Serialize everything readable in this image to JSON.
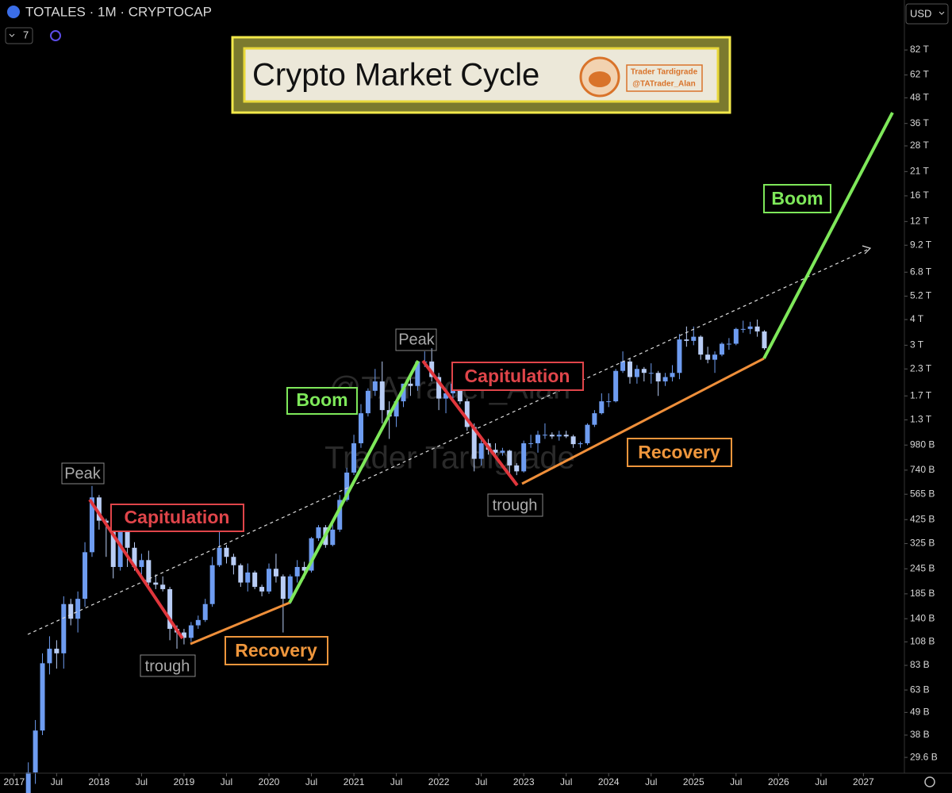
{
  "chart_data": {
    "type": "candlestick",
    "title": "TOTALES · 1M · CRYPTOCAP",
    "indicator": "7",
    "currency": "USD",
    "log_scale": true,
    "up_color": "#6e9cf0",
    "down_color": "#b9cdf5",
    "xlim": [
      "2016-11",
      "2027-06"
    ],
    "ylim": [
      24.8,
      143600
    ],
    "xticks": [
      {
        "value": "2017-01",
        "label": "2017"
      },
      {
        "value": "2017-07",
        "label": "Jul"
      },
      {
        "value": "2018-01",
        "label": "2018"
      },
      {
        "value": "2018-07",
        "label": "Jul"
      },
      {
        "value": "2019-01",
        "label": "2019"
      },
      {
        "value": "2019-07",
        "label": "Jul"
      },
      {
        "value": "2020-01",
        "label": "2020"
      },
      {
        "value": "2020-07",
        "label": "Jul"
      },
      {
        "value": "2021-01",
        "label": "2021"
      },
      {
        "value": "2021-07",
        "label": "Jul"
      },
      {
        "value": "2022-01",
        "label": "2022"
      },
      {
        "value": "2022-07",
        "label": "Jul"
      },
      {
        "value": "2023-01",
        "label": "2023"
      },
      {
        "value": "2023-07",
        "label": "Jul"
      },
      {
        "value": "2024-01",
        "label": "2024"
      },
      {
        "value": "2024-07",
        "label": "Jul"
      },
      {
        "value": "2025-01",
        "label": "2025"
      },
      {
        "value": "2025-07",
        "label": "Jul"
      },
      {
        "value": "2026-01",
        "label": "2026"
      },
      {
        "value": "2026-07",
        "label": "Jul"
      },
      {
        "value": "2027-01",
        "label": "2027"
      }
    ],
    "yticks": [
      {
        "value": 82000,
        "label": "82 T"
      },
      {
        "value": 62000,
        "label": "62 T"
      },
      {
        "value": 48000,
        "label": "48 T"
      },
      {
        "value": 36000,
        "label": "36 T"
      },
      {
        "value": 28000,
        "label": "28 T"
      },
      {
        "value": 21000,
        "label": "21 T"
      },
      {
        "value": 16000,
        "label": "16 T"
      },
      {
        "value": 12000,
        "label": "12 T"
      },
      {
        "value": 9200,
        "label": "9.2 T"
      },
      {
        "value": 6800,
        "label": "6.8 T"
      },
      {
        "value": 5200,
        "label": "5.2 T"
      },
      {
        "value": 4000,
        "label": "4 T"
      },
      {
        "value": 3000,
        "label": "3 T"
      },
      {
        "value": 2300,
        "label": "2.3 T"
      },
      {
        "value": 1700,
        "label": "1.7 T"
      },
      {
        "value": 1300,
        "label": "1.3 T"
      },
      {
        "value": 980,
        "label": "980 B"
      },
      {
        "value": 740,
        "label": "740 B"
      },
      {
        "value": 565,
        "label": "565 B"
      },
      {
        "value": 425,
        "label": "425 B"
      },
      {
        "value": 325,
        "label": "325 B"
      },
      {
        "value": 245,
        "label": "245 B"
      },
      {
        "value": 185,
        "label": "185 B"
      },
      {
        "value": 140,
        "label": "140 B"
      },
      {
        "value": 108,
        "label": "108 B"
      },
      {
        "value": 83,
        "label": "83 B"
      },
      {
        "value": 63,
        "label": "63 B"
      },
      {
        "value": 49,
        "label": "49 B"
      },
      {
        "value": 38,
        "label": "38 B"
      },
      {
        "value": 29.6,
        "label": "29.6 B"
      }
    ],
    "x": [
      "2017-03",
      "2017-04",
      "2017-05",
      "2017-06",
      "2017-07",
      "2017-08",
      "2017-09",
      "2017-10",
      "2017-11",
      "2017-12",
      "2018-01",
      "2018-02",
      "2018-03",
      "2018-04",
      "2018-05",
      "2018-06",
      "2018-07",
      "2018-08",
      "2018-09",
      "2018-10",
      "2018-11",
      "2018-12",
      "2019-01",
      "2019-02",
      "2019-03",
      "2019-04",
      "2019-05",
      "2019-06",
      "2019-07",
      "2019-08",
      "2019-09",
      "2019-10",
      "2019-11",
      "2019-12",
      "2020-01",
      "2020-02",
      "2020-03",
      "2020-04",
      "2020-05",
      "2020-06",
      "2020-07",
      "2020-08",
      "2020-09",
      "2020-10",
      "2020-11",
      "2020-12",
      "2021-01",
      "2021-02",
      "2021-03",
      "2021-04",
      "2021-05",
      "2021-06",
      "2021-07",
      "2021-08",
      "2021-09",
      "2021-10",
      "2021-11",
      "2021-12",
      "2022-01",
      "2022-02",
      "2022-03",
      "2022-04",
      "2022-05",
      "2022-06",
      "2022-07",
      "2022-08",
      "2022-09",
      "2022-10",
      "2022-11",
      "2022-12",
      "2023-01",
      "2023-02",
      "2023-03",
      "2023-04",
      "2023-05",
      "2023-06",
      "2023-07",
      "2023-08",
      "2023-09",
      "2023-10",
      "2023-11",
      "2023-12",
      "2024-01",
      "2024-02",
      "2024-03",
      "2024-04",
      "2024-05",
      "2024-06",
      "2024-07",
      "2024-08",
      "2024-09",
      "2024-10",
      "2024-11",
      "2024-12",
      "2025-01",
      "2025-02",
      "2025-03",
      "2025-04",
      "2025-05",
      "2025-06",
      "2025-07",
      "2025-08",
      "2025-09",
      "2025-10",
      "2025-11"
    ],
    "open": [
      18,
      25,
      40,
      85,
      100,
      95,
      165,
      140,
      175,
      295,
      545,
      420,
      410,
      250,
      390,
      310,
      250,
      270,
      210,
      205,
      195,
      125,
      120,
      113,
      130,
      138,
      165,
      255,
      310,
      280,
      255,
      210,
      235,
      200,
      190,
      245,
      225,
      175,
      225,
      250,
      240,
      345,
      390,
      320,
      380,
      530,
      720,
      1000,
      1400,
      1800,
      2000,
      1450,
      1350,
      1600,
      1950,
      1900,
      2500,
      2500,
      2100,
      1650,
      1750,
      1950,
      1600,
      1200,
      840,
      1000,
      930,
      900,
      920,
      780,
      730,
      1000,
      1000,
      1100,
      1100,
      1080,
      1100,
      1080,
      990,
      1000,
      1230,
      1400,
      1600,
      1600,
      2250,
      2500,
      2100,
      2300,
      2200,
      2200,
      2000,
      2100,
      2200,
      3200,
      3150,
      3300,
      2700,
      2550,
      2700,
      3050,
      3050,
      3600,
      3600,
      3700,
      3500
    ],
    "high": [
      28,
      45,
      95,
      115,
      110,
      180,
      175,
      190,
      330,
      620,
      560,
      430,
      450,
      420,
      420,
      330,
      290,
      300,
      230,
      225,
      200,
      130,
      125,
      135,
      145,
      175,
      280,
      370,
      320,
      290,
      260,
      260,
      240,
      205,
      260,
      290,
      230,
      230,
      270,
      265,
      350,
      400,
      400,
      410,
      560,
      760,
      1100,
      1550,
      1850,
      2300,
      2500,
      1600,
      1500,
      1700,
      2150,
      2100,
      2800,
      2900,
      2200,
      1850,
      2050,
      2000,
      1650,
      1250,
      1050,
      1050,
      1000,
      950,
      930,
      800,
      1030,
      1100,
      1150,
      1250,
      1130,
      1150,
      1150,
      1100,
      1020,
      1250,
      1450,
      1750,
      1750,
      2300,
      2800,
      2600,
      2400,
      2350,
      2450,
      2250,
      2200,
      2400,
      3400,
      3700,
      3700,
      3350,
      2950,
      2800,
      3100,
      3250,
      3650,
      3950,
      3900,
      4000,
      3550
    ],
    "low": [
      17,
      22,
      38,
      75,
      80,
      80,
      130,
      120,
      160,
      280,
      380,
      280,
      220,
      240,
      250,
      240,
      230,
      200,
      195,
      190,
      110,
      100,
      105,
      108,
      125,
      135,
      160,
      250,
      260,
      230,
      200,
      190,
      195,
      180,
      185,
      210,
      120,
      165,
      210,
      220,
      235,
      335,
      310,
      315,
      370,
      520,
      700,
      950,
      1350,
      1700,
      1250,
      1050,
      1200,
      1500,
      1700,
      1800,
      2350,
      2000,
      1450,
      1400,
      1650,
      1550,
      1150,
      730,
      780,
      880,
      860,
      870,
      690,
      700,
      720,
      950,
      900,
      1050,
      1050,
      1030,
      1060,
      950,
      950,
      980,
      1200,
      1380,
      1500,
      1580,
      2200,
      1950,
      1950,
      2000,
      1950,
      1700,
      1900,
      2000,
      2050,
      2950,
      3000,
      2550,
      2450,
      2200,
      2650,
      2850,
      3000,
      3450,
      3400,
      3300,
      2850
    ],
    "close": [
      25,
      40,
      85,
      100,
      95,
      165,
      140,
      175,
      295,
      545,
      420,
      410,
      250,
      390,
      310,
      250,
      270,
      210,
      205,
      195,
      125,
      120,
      113,
      130,
      138,
      165,
      255,
      310,
      280,
      255,
      210,
      235,
      200,
      190,
      245,
      225,
      175,
      225,
      250,
      240,
      345,
      390,
      320,
      380,
      530,
      720,
      1000,
      1400,
      1800,
      2000,
      1450,
      1350,
      1600,
      1950,
      1900,
      2500,
      2500,
      2100,
      1650,
      1750,
      1950,
      1600,
      1200,
      840,
      1000,
      930,
      900,
      920,
      780,
      730,
      1000,
      1000,
      1100,
      1100,
      1080,
      1100,
      1080,
      990,
      1000,
      1230,
      1400,
      1600,
      1600,
      2250,
      2500,
      2100,
      2300,
      2200,
      2200,
      2000,
      2100,
      2200,
      3200,
      3150,
      3300,
      2700,
      2550,
      2700,
      3050,
      3050,
      3600,
      3600,
      3700,
      3500,
      2900
    ],
    "annotations": [
      "Peak",
      "Capitulation",
      "trough",
      "Recovery",
      "Boom",
      "Peak",
      "Capitulation",
      "trough",
      "Recovery",
      "Boom"
    ],
    "title_box": {
      "title": "Crypto Market Cycle",
      "author": "Trader Tardigrade",
      "handle": "@TATrader_Alan"
    },
    "watermark": [
      "@TATrader_Alan",
      "Trader Tardigrade"
    ]
  }
}
